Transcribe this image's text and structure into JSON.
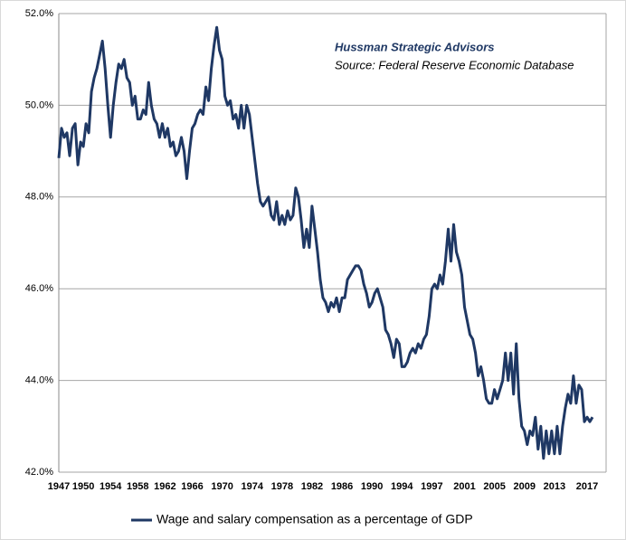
{
  "chart_data": {
    "type": "line",
    "annotations": [
      "Hussman Strategic Advisors",
      "Source: Federal Reserve Economic Database"
    ],
    "categories": [
      "1947",
      null,
      null,
      null,
      null,
      null,
      null,
      null,
      null,
      "1950",
      null,
      null,
      null,
      null,
      null,
      null,
      null,
      null,
      null,
      "1954",
      null,
      null,
      null,
      null,
      null,
      null,
      null,
      null,
      null,
      "1958",
      null,
      null,
      null,
      null,
      null,
      null,
      null,
      null,
      null,
      "1962",
      null,
      null,
      null,
      null,
      null,
      null,
      null,
      null,
      null,
      "1966",
      null,
      null,
      null,
      null,
      null,
      null,
      null,
      null,
      null,
      null,
      "1970",
      null,
      null,
      null,
      null,
      null,
      null,
      null,
      null,
      null,
      null,
      "1974",
      null,
      null,
      null,
      null,
      null,
      null,
      null,
      null,
      null,
      null,
      "1978",
      null,
      null,
      null,
      null,
      null,
      null,
      null,
      null,
      null,
      null,
      "1982",
      null,
      null,
      null,
      null,
      null,
      null,
      null,
      null,
      null,
      null,
      "1986",
      null,
      null,
      null,
      null,
      null,
      null,
      null,
      null,
      null,
      null,
      "1990",
      null,
      null,
      null,
      null,
      null,
      null,
      null,
      null,
      null,
      null,
      "1994",
      null,
      null,
      null,
      null,
      null,
      null,
      null,
      null,
      null,
      null,
      "1997",
      null,
      null,
      null,
      null,
      null,
      null,
      null,
      null,
      null,
      null,
      null,
      "2001",
      null,
      null,
      null,
      null,
      null,
      null,
      null,
      null,
      null,
      null,
      "2005",
      null,
      null,
      null,
      null,
      null,
      null,
      null,
      null,
      null,
      null,
      "2009",
      null,
      null,
      null,
      null,
      null,
      null,
      null,
      null,
      null,
      null,
      "2013",
      null,
      null,
      null,
      null,
      null,
      null,
      null,
      null,
      null,
      null,
      null,
      "2017",
      null,
      null
    ],
    "series": [
      {
        "name": "Wage and salary compensation as a percentage of GDP",
        "color": "#1f3864",
        "values": [
          48.85,
          49.5,
          49.3,
          49.4,
          48.9,
          49.5,
          49.6,
          48.7,
          49.2,
          49.1,
          49.6,
          49.4,
          50.3,
          50.6,
          50.8,
          51.1,
          51.4,
          50.8,
          50.0,
          49.3,
          50.0,
          50.5,
          50.9,
          50.8,
          51.0,
          50.6,
          50.5,
          50.0,
          50.2,
          49.7,
          49.7,
          49.9,
          49.8,
          50.5,
          50.0,
          49.7,
          49.6,
          49.3,
          49.6,
          49.3,
          49.5,
          49.1,
          49.2,
          48.9,
          49.0,
          49.3,
          49.0,
          48.4,
          49.0,
          49.5,
          49.6,
          49.8,
          49.9,
          49.8,
          50.4,
          50.1,
          50.8,
          51.3,
          51.7,
          51.2,
          51.0,
          50.2,
          50.0,
          50.1,
          49.7,
          49.8,
          49.5,
          50.0,
          49.5,
          50.0,
          49.8,
          49.3,
          48.8,
          48.3,
          47.9,
          47.8,
          47.9,
          48.0,
          47.6,
          47.5,
          47.9,
          47.4,
          47.6,
          47.4,
          47.7,
          47.5,
          47.6,
          48.2,
          48.0,
          47.5,
          46.9,
          47.3,
          46.9,
          47.8,
          47.3,
          46.8,
          46.2,
          45.8,
          45.7,
          45.5,
          45.7,
          45.6,
          45.8,
          45.5,
          45.8,
          45.8,
          46.2,
          46.3,
          46.4,
          46.5,
          46.5,
          46.4,
          46.1,
          45.9,
          45.6,
          45.7,
          45.9,
          46.0,
          45.8,
          45.6,
          45.1,
          45.0,
          44.8,
          44.5,
          44.9,
          44.8,
          44.3,
          44.3,
          44.4,
          44.6,
          44.7,
          44.6,
          44.8,
          44.7,
          44.9,
          45.0,
          45.4,
          46.0,
          46.1,
          46.0,
          46.3,
          46.1,
          46.6,
          47.3,
          46.6,
          47.4,
          46.8,
          46.6,
          46.3,
          45.6,
          45.3,
          45.0,
          44.9,
          44.6,
          44.1,
          44.3,
          44.0,
          43.6,
          43.5,
          43.5,
          43.8,
          43.6,
          43.8,
          44.0,
          44.6,
          44.0,
          44.6,
          43.7,
          44.8,
          43.6,
          43.0,
          42.9,
          42.6,
          42.9,
          42.8,
          43.2,
          42.5,
          43.0,
          42.3,
          42.9,
          42.4,
          42.9,
          42.4,
          43.0,
          42.4,
          43.0,
          43.4,
          43.7,
          43.5,
          44.1,
          43.5,
          43.9,
          43.8,
          43.1,
          43.2,
          43.1,
          43.2
        ]
      }
    ],
    "ylim": [
      42,
      52
    ],
    "yticks": [
      {
        "value": 42,
        "label": "42.0%"
      },
      {
        "value": 44,
        "label": "44.0%"
      },
      {
        "value": 46,
        "label": "46.0%"
      },
      {
        "value": 48,
        "label": "48.0%"
      },
      {
        "value": 50,
        "label": "50.0%"
      },
      {
        "value": 52,
        "label": "52.0%"
      }
    ],
    "grid": true,
    "legend": "bottom"
  }
}
